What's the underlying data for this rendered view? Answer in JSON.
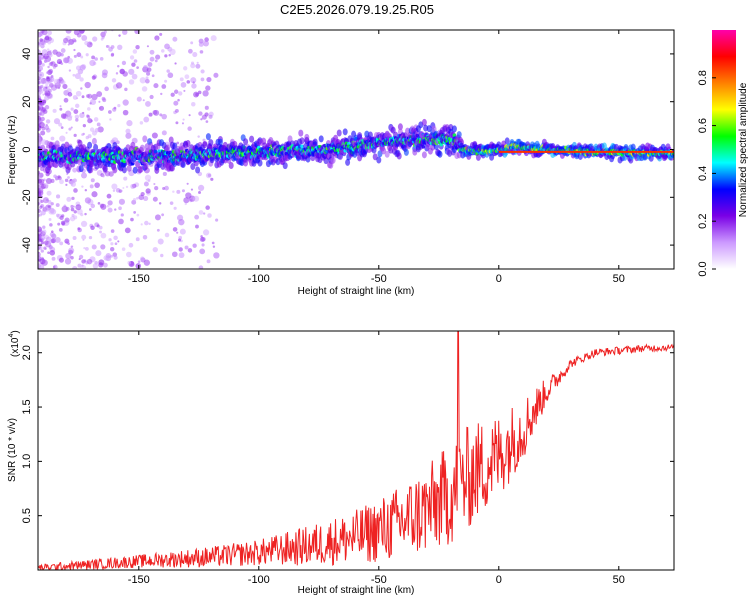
{
  "title": "C2E5.2026.079.19.25.R05",
  "chart_data": [
    {
      "type": "heatmap",
      "name": "spectrogram",
      "xlabel": "Height of straight line (km)",
      "ylabel": "Frequency (Hz)",
      "xlim": [
        -192,
        73
      ],
      "ylim": [
        -50,
        50
      ],
      "xticks": [
        -150,
        -100,
        -50,
        0,
        50
      ],
      "yticks": [
        -40,
        -20,
        0,
        20,
        40
      ],
      "xtick_labels": [
        "-150",
        "-100",
        "-50",
        "0",
        "50"
      ],
      "ytick_labels": [
        "-40",
        "-20",
        "0",
        "20",
        "40"
      ],
      "colorbar": {
        "label": "Normalized spectral amplitude",
        "range": [
          0,
          1
        ],
        "ticks": [
          0.0,
          0.2,
          0.4,
          0.6,
          0.8
        ],
        "tick_labels": [
          "0.0",
          "0.2",
          "0.4",
          "0.6",
          "0.8"
        ],
        "colors": [
          "#ffffff",
          "#cc99ff",
          "#7a00e6",
          "#0000ff",
          "#00ffff",
          "#00ff00",
          "#ffff00",
          "#ff8000",
          "#ff0000",
          "#ff00aa"
        ]
      },
      "center_line": {
        "x": [
          -192,
          -150,
          -100,
          -70,
          -50,
          -35,
          -20,
          -15,
          -8,
          0,
          5,
          10,
          20,
          40,
          73
        ],
        "y": [
          -3,
          -3,
          -1,
          0,
          3,
          4,
          4,
          0,
          -1,
          0,
          1,
          1,
          0,
          -1,
          -1.5
        ]
      }
    },
    {
      "type": "line",
      "name": "snr",
      "xlabel": "Height of straight line (km)",
      "ylabel": "SNR (10 * v/v)",
      "y_multiplier": "(x10",
      "y_multiplier_exp": "4",
      "y_multiplier_close": ")",
      "xlim": [
        -192,
        73
      ],
      "ylim": [
        0,
        2.2
      ],
      "xticks": [
        -150,
        -100,
        -50,
        0,
        50
      ],
      "yticks": [
        0.5,
        1.0,
        1.5,
        2.0
      ],
      "xtick_labels": [
        "-150",
        "-100",
        "-50",
        "0",
        "50"
      ],
      "ytick_labels": [
        "0.5",
        "1.0",
        "1.5",
        "2.0"
      ],
      "color": "#ee2222",
      "trend": {
        "x": [
          -192,
          -170,
          -150,
          -120,
          -100,
          -80,
          -60,
          -45,
          -30,
          -20,
          -10,
          0,
          10,
          20,
          30,
          40,
          50,
          60,
          73
        ],
        "y": [
          0.02,
          0.05,
          0.08,
          0.12,
          0.16,
          0.22,
          0.3,
          0.4,
          0.55,
          0.7,
          0.9,
          1.05,
          1.3,
          1.65,
          1.9,
          2.0,
          2.02,
          2.04,
          2.05
        ]
      },
      "noise": {
        "x": [
          -192,
          -150,
          -100,
          -60,
          -40,
          -25,
          -15,
          0,
          10,
          20,
          30,
          73
        ],
        "y": [
          0.03,
          0.06,
          0.12,
          0.25,
          0.35,
          0.45,
          0.5,
          0.4,
          0.3,
          0.12,
          0.04,
          0.03
        ]
      },
      "peak": {
        "x": -17,
        "y": 2.2
      }
    }
  ]
}
